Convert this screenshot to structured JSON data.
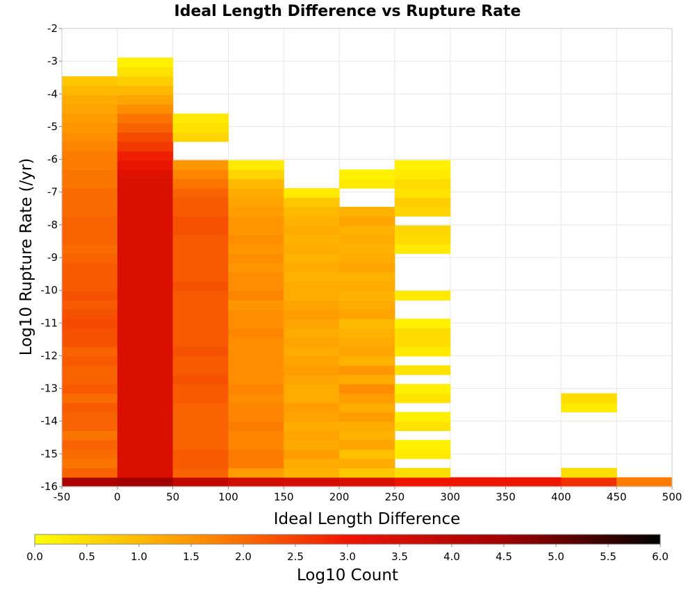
{
  "chart_data": {
    "type": "heatmap",
    "title": "Ideal Length Difference vs Rupture Rate",
    "xlabel": "Ideal Length Difference",
    "ylabel": "Log10 Rupture Rate (/yr)",
    "xlim": [
      -50,
      500
    ],
    "ylim": [
      -16,
      -2
    ],
    "x_ticks": [
      -50,
      0,
      50,
      100,
      150,
      200,
      250,
      300,
      350,
      400,
      450,
      500
    ],
    "y_ticks": [
      -2,
      -3,
      -4,
      -5,
      -6,
      -7,
      -8,
      -9,
      -10,
      -11,
      -12,
      -13,
      -14,
      -15,
      -16
    ],
    "grid": true,
    "x_bin_width": 50,
    "y_bin_height": 0.285,
    "colorbar": {
      "label": "Log10 Count",
      "range": [
        0,
        6
      ],
      "ticks": [
        "0.0",
        "0.5",
        "1.0",
        "1.5",
        "2.0",
        "2.5",
        "3.0",
        "3.5",
        "4.0",
        "4.5",
        "5.0",
        "5.5",
        "6.0"
      ],
      "colors": [
        "#ffff00",
        "#ff9600",
        "#ee1500",
        "#a00000",
        "#000000"
      ]
    },
    "columns": [
      {
        "x": -25,
        "y_bottom": -16,
        "values": [
          4.3,
          2.1,
          1.9,
          2.0,
          2.1,
          1.9,
          2.1,
          2.1,
          2.2,
          2.0,
          2.2,
          2.1,
          2.1,
          2.2,
          2.1,
          2.3,
          2.3,
          2.4,
          2.3,
          2.2,
          2.3,
          2.2,
          2.2,
          2.2,
          2.1,
          2.0,
          2.1,
          2.1,
          2.1,
          2.0,
          2.0,
          2.0,
          1.9,
          1.9,
          1.8,
          1.8,
          1.7,
          1.6,
          1.5,
          1.4,
          1.3,
          1.2,
          1.0,
          0.8
        ]
      },
      {
        "x": 25,
        "y_bottom": -16,
        "values": [
          4.5,
          3.4,
          3.4,
          3.4,
          3.4,
          3.4,
          3.4,
          3.4,
          3.4,
          3.4,
          3.4,
          3.4,
          3.4,
          3.4,
          3.4,
          3.4,
          3.4,
          3.4,
          3.4,
          3.4,
          3.4,
          3.4,
          3.4,
          3.4,
          3.4,
          3.4,
          3.4,
          3.4,
          3.4,
          3.4,
          3.4,
          3.4,
          3.4,
          3.3,
          3.1,
          2.9,
          2.6,
          2.4,
          2.1,
          1.9,
          1.6,
          1.3,
          1.0,
          0.7,
          0.4,
          0.2
        ]
      },
      {
        "x": 75,
        "y_bottom": -16,
        "values": [
          3.9,
          2.1,
          2.2,
          2.2,
          2.1,
          2.1,
          2.1,
          2.1,
          2.1,
          2.2,
          2.2,
          2.3,
          2.2,
          2.2,
          2.3,
          2.2,
          2.2,
          2.2,
          2.2,
          2.2,
          2.2,
          2.3,
          2.2,
          2.2,
          2.2,
          2.2,
          2.2,
          2.3,
          2.3,
          2.2,
          2.2,
          2.1,
          1.9,
          1.7,
          1.5,
          null,
          null,
          0.6,
          0.4,
          0.3
        ]
      },
      {
        "x": 125,
        "y_bottom": -16,
        "values": [
          3.6,
          1.4,
          1.8,
          1.8,
          1.7,
          1.7,
          1.8,
          1.7,
          1.7,
          1.6,
          1.7,
          1.6,
          1.6,
          1.6,
          1.6,
          1.6,
          1.7,
          1.6,
          1.6,
          1.5,
          1.7,
          1.6,
          1.6,
          1.5,
          1.6,
          1.5,
          1.6,
          1.5,
          1.5,
          1.4,
          1.3,
          1.2,
          1.0,
          0.6,
          0.3
        ]
      },
      {
        "x": 175,
        "y_bottom": -16,
        "values": [
          3.5,
          1.1,
          1.2,
          1.4,
          1.2,
          1.3,
          1.2,
          1.3,
          1.4,
          1.2,
          1.2,
          1.3,
          1.4,
          1.3,
          1.2,
          1.3,
          1.2,
          1.3,
          1.4,
          1.3,
          1.2,
          1.2,
          1.1,
          1.2,
          1.1,
          1.2,
          1.1,
          1.2,
          1.1,
          1.0,
          0.8,
          0.3
        ]
      },
      {
        "x": 225,
        "y_bottom": -16,
        "values": [
          3.4,
          0.8,
          1.2,
          0.9,
          1.3,
          1.1,
          1.2,
          1.4,
          1.2,
          1.4,
          1.6,
          1.2,
          1.5,
          1.1,
          1.3,
          1.2,
          1.1,
          1.0,
          1.3,
          1.2,
          1.1,
          1.2,
          1.1,
          1.3,
          1.2,
          1.1,
          1.2,
          1.1,
          1.3,
          1.1,
          null,
          null,
          0.3,
          0.2
        ]
      },
      {
        "x": 275,
        "y_bottom": -16,
        "values": [
          3.0,
          0.5,
          null,
          0.3,
          0.2,
          null,
          0.4,
          0.2,
          null,
          0.4,
          0.2,
          null,
          0.4,
          null,
          0.3,
          0.5,
          0.5,
          0.2,
          null,
          null,
          0.3,
          null,
          null,
          null,
          null,
          0.3,
          0.5,
          0.6,
          null,
          0.6,
          0.7,
          0.4,
          0.5,
          0.3,
          0.2
        ]
      },
      {
        "x": 325,
        "y_bottom": -16,
        "values": [
          3.0
        ]
      },
      {
        "x": 375,
        "y_bottom": -16,
        "values": [
          3.0
        ]
      },
      {
        "x": 425,
        "y_bottom": -16,
        "values": [
          2.7,
          0.5,
          null,
          null,
          null,
          null,
          null,
          null,
          0.3,
          0.5
        ]
      },
      {
        "x": 475,
        "y_bottom": -16,
        "values": [
          1.8
        ]
      }
    ]
  }
}
